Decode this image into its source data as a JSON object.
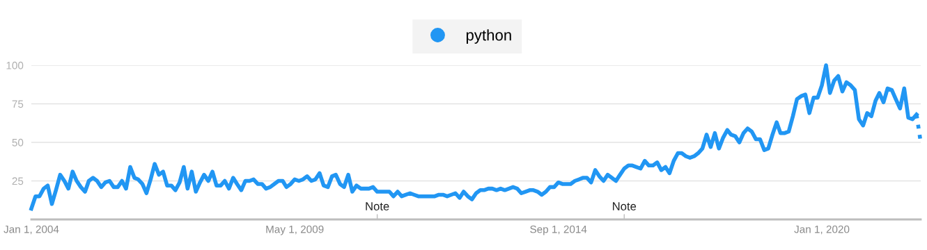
{
  "chart_data": {
    "type": "line",
    "x": [
      "2004-01",
      "2004-02",
      "2004-03",
      "2004-04",
      "2004-05",
      "2004-06",
      "2004-07",
      "2004-08",
      "2004-09",
      "2004-10",
      "2004-11",
      "2004-12",
      "2005-01",
      "2005-02",
      "2005-03",
      "2005-04",
      "2005-05",
      "2005-06",
      "2005-07",
      "2005-08",
      "2005-09",
      "2005-10",
      "2005-11",
      "2005-12",
      "2006-01",
      "2006-02",
      "2006-03",
      "2006-04",
      "2006-05",
      "2006-06",
      "2006-07",
      "2006-08",
      "2006-09",
      "2006-10",
      "2006-11",
      "2006-12",
      "2007-01",
      "2007-02",
      "2007-03",
      "2007-04",
      "2007-05",
      "2007-06",
      "2007-07",
      "2007-08",
      "2007-09",
      "2007-10",
      "2007-11",
      "2007-12",
      "2008-01",
      "2008-02",
      "2008-03",
      "2008-04",
      "2008-05",
      "2008-06",
      "2008-07",
      "2008-08",
      "2008-09",
      "2008-10",
      "2008-11",
      "2008-12",
      "2009-01",
      "2009-02",
      "2009-03",
      "2009-04",
      "2009-05",
      "2009-06",
      "2009-07",
      "2009-08",
      "2009-09",
      "2009-10",
      "2009-11",
      "2009-12",
      "2010-01",
      "2010-02",
      "2010-03",
      "2010-04",
      "2010-05",
      "2010-06",
      "2010-07",
      "2010-08",
      "2010-09",
      "2010-10",
      "2010-11",
      "2010-12",
      "2011-01",
      "2011-02",
      "2011-03",
      "2011-04",
      "2011-05",
      "2011-06",
      "2011-07",
      "2011-08",
      "2011-09",
      "2011-10",
      "2011-11",
      "2011-12",
      "2012-01",
      "2012-02",
      "2012-03",
      "2012-04",
      "2012-05",
      "2012-06",
      "2012-07",
      "2012-08",
      "2012-09",
      "2012-10",
      "2012-11",
      "2012-12",
      "2013-01",
      "2013-02",
      "2013-03",
      "2013-04",
      "2013-05",
      "2013-06",
      "2013-07",
      "2013-08",
      "2013-09",
      "2013-10",
      "2013-11",
      "2013-12",
      "2014-01",
      "2014-02",
      "2014-03",
      "2014-04",
      "2014-05",
      "2014-06",
      "2014-07",
      "2014-08",
      "2014-09",
      "2014-10",
      "2014-11",
      "2014-12",
      "2015-01",
      "2015-02",
      "2015-03",
      "2015-04",
      "2015-05",
      "2015-06",
      "2015-07",
      "2015-08",
      "2015-09",
      "2015-10",
      "2015-11",
      "2015-12",
      "2016-01",
      "2016-02",
      "2016-03",
      "2016-04",
      "2016-05",
      "2016-06",
      "2016-07",
      "2016-08",
      "2016-09",
      "2016-10",
      "2016-11",
      "2016-12",
      "2017-01",
      "2017-02",
      "2017-03",
      "2017-04",
      "2017-05",
      "2017-06",
      "2017-07",
      "2017-08",
      "2017-09",
      "2017-10",
      "2017-11",
      "2017-12",
      "2018-01",
      "2018-02",
      "2018-03",
      "2018-04",
      "2018-05",
      "2018-06",
      "2018-07",
      "2018-08",
      "2018-09",
      "2018-10",
      "2018-11",
      "2018-12",
      "2019-01",
      "2019-02",
      "2019-03",
      "2019-04",
      "2019-05",
      "2019-06",
      "2019-07",
      "2019-08",
      "2019-09",
      "2019-10",
      "2019-11",
      "2019-12",
      "2020-01",
      "2020-02",
      "2020-03",
      "2020-04",
      "2020-05",
      "2020-06",
      "2020-07",
      "2020-08",
      "2020-09",
      "2020-10",
      "2020-11",
      "2020-12",
      "2021-01",
      "2021-02",
      "2021-03",
      "2021-04",
      "2021-05",
      "2021-06",
      "2021-07",
      "2021-08",
      "2021-09",
      "2021-10",
      "2021-11",
      "2021-12"
    ],
    "series": [
      {
        "name": "python",
        "color": "#2196f3",
        "values": [
          7,
          15,
          15,
          20,
          22,
          10,
          19,
          29,
          25,
          20,
          31,
          25,
          21,
          18,
          25,
          27,
          25,
          21,
          24,
          25,
          21,
          21,
          25,
          20,
          34,
          27,
          26,
          23,
          17,
          26,
          36,
          29,
          31,
          22,
          22,
          19,
          24,
          34,
          20,
          31,
          18,
          24,
          29,
          25,
          31,
          22,
          22,
          25,
          20,
          27,
          23,
          19,
          25,
          25,
          26,
          23,
          23,
          20,
          21,
          23,
          25,
          25,
          21,
          23,
          26,
          25,
          26,
          28,
          25,
          26,
          30,
          22,
          21,
          28,
          29,
          23,
          21,
          29,
          18,
          22,
          20,
          20,
          20,
          21,
          18,
          18,
          18,
          18,
          15,
          18,
          15,
          16,
          17,
          16,
          15,
          15,
          15,
          15,
          15,
          16,
          16,
          15,
          16,
          17,
          14,
          18,
          15,
          13,
          17,
          19,
          19,
          20,
          20,
          19,
          20,
          19,
          20,
          21,
          20,
          17,
          18,
          19,
          19,
          18,
          16,
          18,
          21,
          21,
          24,
          23,
          23,
          23,
          25,
          26,
          27,
          27,
          24,
          32,
          28,
          25,
          29,
          27,
          25,
          29,
          33,
          35,
          35,
          34,
          33,
          38,
          35,
          35,
          37,
          32,
          34,
          30,
          38,
          43,
          43,
          41,
          40,
          41,
          43,
          46,
          55,
          47,
          56,
          46,
          53,
          58,
          55,
          54,
          50,
          56,
          59,
          57,
          52,
          52,
          45,
          46,
          55,
          63,
          56,
          56,
          57,
          67,
          78,
          80,
          81,
          69,
          79,
          79,
          87,
          100,
          82,
          90,
          93,
          83,
          89,
          87,
          84,
          65,
          61,
          69,
          67,
          77,
          82,
          76,
          85,
          84,
          78,
          72,
          85,
          66,
          65,
          68
        ]
      },
      {
        "color": "#2196f3",
        "line_style": "dotted",
        "x": [
          "2021-12",
          "2022-01"
        ],
        "values": [
          68,
          50
        ]
      }
    ],
    "xlim": [
      "2004-01-01",
      "2022-01-01"
    ],
    "xticks": [
      {
        "value": "2004-01-01",
        "label": "Jan 1, 2004"
      },
      {
        "value": "2009-05-01",
        "label": "May 1, 2009"
      },
      {
        "value": "2014-09-01",
        "label": "Sep 1, 2014"
      },
      {
        "value": "2020-01-01",
        "label": "Jan 1, 2020"
      }
    ],
    "ylim": [
      0,
      100
    ],
    "yticks": [
      25,
      50,
      75,
      100
    ],
    "grid": "y",
    "legend": "top",
    "marker": "none",
    "line_style": "solid",
    "annotations": [
      {
        "text": "Note",
        "x": "2011-01-01"
      },
      {
        "text": "Note",
        "x": "2016-01-01"
      }
    ]
  }
}
